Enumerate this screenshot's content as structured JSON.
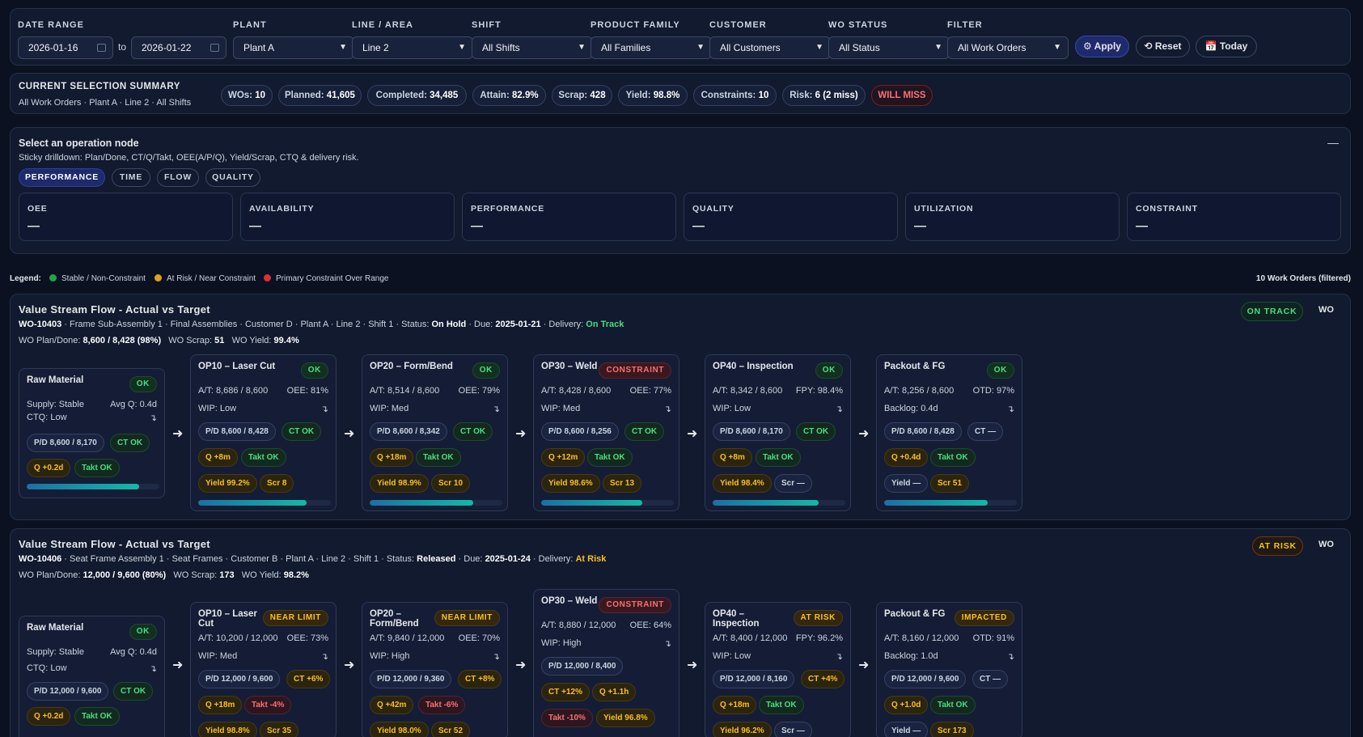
{
  "filters": {
    "date_range": {
      "label": "DATE RANGE",
      "from": "2026-01-16",
      "to_label": "to",
      "to": "2026-01-22"
    },
    "plant": {
      "label": "PLANT",
      "value": "Plant A"
    },
    "line": {
      "label": "LINE / AREA",
      "value": "Line 2"
    },
    "shift": {
      "label": "SHIFT",
      "value": "All Shifts"
    },
    "family": {
      "label": "PRODUCT FAMILY",
      "value": "All Families"
    },
    "customer": {
      "label": "CUSTOMER",
      "value": "All Customers"
    },
    "status": {
      "label": "WO STATUS",
      "value": "All Status"
    },
    "filter": {
      "label": "FILTER",
      "value": "All Work Orders"
    },
    "apply": "⚙ Apply",
    "reset": "⟲ Reset",
    "today": "📅 Today"
  },
  "summary": {
    "title": "CURRENT SELECTION SUMMARY",
    "subtitle": "All Work Orders · Plant A · Line 2 · All Shifts",
    "chips": [
      {
        "k": "WOs:",
        "v": "10"
      },
      {
        "k": "Planned:",
        "v": "41,605"
      },
      {
        "k": "Completed:",
        "v": "34,485"
      },
      {
        "k": "Attain:",
        "v": "82.9%"
      },
      {
        "k": "Scrap:",
        "v": "428"
      },
      {
        "k": "Yield:",
        "v": "98.8%"
      },
      {
        "k": "Constraints:",
        "v": "10"
      },
      {
        "k": "Risk:",
        "v": "6 (2 miss)"
      }
    ],
    "status": "WILL MISS"
  },
  "opnode": {
    "title": "Select an operation node",
    "subtitle": "Sticky drilldown: Plan/Done, CT/Q/Takt, OEE(A/P/Q), Yield/Scrap, CTQ & delivery risk.",
    "collapse": "—",
    "tabs": [
      "PERFORMANCE",
      "TIME",
      "FLOW",
      "QUALITY"
    ],
    "kpis": [
      {
        "label": "OEE",
        "value": "—"
      },
      {
        "label": "AVAILABILITY",
        "value": "—"
      },
      {
        "label": "PERFORMANCE",
        "value": "—"
      },
      {
        "label": "QUALITY",
        "value": "—"
      },
      {
        "label": "UTILIZATION",
        "value": "—"
      },
      {
        "label": "CONSTRAINT",
        "value": "—"
      }
    ]
  },
  "legend": {
    "label": "Legend:",
    "items": [
      "Stable / Non-Constraint",
      "At Risk / Near Constraint",
      "Primary Constraint Over Range"
    ],
    "colors": [
      "#22a34a",
      "#e0a020",
      "#dc3030"
    ],
    "count": "10 Work Orders (filtered)"
  },
  "streams": [
    {
      "title": "Value Stream Flow - Actual vs Target",
      "wo": "WO-10403",
      "desc": "· Frame Sub-Assembly 1 · Final Assemblies · Customer D · Plant A · Line 2 · Shift 1 · Status:",
      "status": "On Hold",
      "due_label": "· Due:",
      "due": "2025-01-21",
      "delivery_label": "· Delivery:",
      "delivery": "On Track",
      "plan_label": "WO Plan/Done:",
      "plan": "8,600 / 8,428 (98%)",
      "scrap_label": "WO Scrap:",
      "scrap": "51",
      "yield_label": "WO Yield:",
      "yield": "99.4%",
      "badge": "ON TRACK",
      "wo_tag": "WO",
      "nodes": [
        {
          "title": "Raw Material",
          "badge": "OK",
          "r1l": "Supply: Stable",
          "r1r": "Avg Q: 0.4d",
          "r2l": "CTQ: Low",
          "r2r": "↴",
          "p1": "P/D 8,600 / 8,170",
          "p2": "CT OK",
          "p3": "Q +0.2d",
          "p4": "Takt OK",
          "progress": 0.85
        },
        {
          "title": "OP10 – Laser Cut",
          "badge": "OK",
          "r1l": "A/T: 8,686 / 8,600",
          "r1r": "OEE: 81%",
          "r2l": "WIP: Low",
          "r2r": "↴",
          "p1": "P/D 8,600 / 8,428",
          "p2": "CT OK",
          "p3": "Q +8m",
          "p4": "Takt OK",
          "p5": "Yield 99.2%",
          "p6": "Scr 8",
          "progress": 0.82
        },
        {
          "title": "OP20 – Form/Bend",
          "badge": "OK",
          "r1l": "A/T: 8,514 / 8,600",
          "r1r": "OEE: 79%",
          "r2l": "WIP: Med",
          "r2r": "↴",
          "p1": "P/D 8,600 / 8,342",
          "p2": "CT OK",
          "p3": "Q +18m",
          "p4": "Takt OK",
          "p5": "Yield 98.9%",
          "p6": "Scr 10",
          "progress": 0.78
        },
        {
          "title": "OP30 – Weld",
          "badge": "CONSTRAINT",
          "r1l": "A/T: 8,428 / 8,600",
          "r1r": "OEE: 77%",
          "r2l": "WIP: Med",
          "r2r": "↴",
          "p1": "P/D 8,600 / 8,256",
          "p2": "CT OK",
          "p3": "Q +12m",
          "p4": "Takt OK",
          "p5": "Yield 98.6%",
          "p6": "Scr 13",
          "progress": 0.76
        },
        {
          "title": "OP40 – Inspection",
          "badge": "OK",
          "r1l": "A/T: 8,342 / 8,600",
          "r1r": "FPY: 98.4%",
          "r2l": "WIP: Low",
          "r2r": "↴",
          "p1": "P/D 8,600 / 8,170",
          "p2": "CT OK",
          "p3": "Q +8m",
          "p4": "Takt OK",
          "p5": "Yield 98.4%",
          "p6": "Scr —",
          "progress": 0.8
        },
        {
          "title": "Packout & FG",
          "badge": "OK",
          "r1l": "A/T: 8,256 / 8,600",
          "r1r": "OTD: 97%",
          "r2l": "Backlog: 0.4d",
          "r2r": "↴",
          "p1": "P/D 8,600 / 8,428",
          "p2": "CT —",
          "p3": "Q +0.4d",
          "p4": "Takt OK",
          "p5": "Yield —",
          "p6": "Scr 51",
          "progress": 0.78
        }
      ]
    },
    {
      "title": "Value Stream Flow - Actual vs Target",
      "wo": "WO-10406",
      "desc": "· Seat Frame Assembly 1 · Seat Frames · Customer B · Plant A · Line 2 · Shift 1 · Status:",
      "status": "Released",
      "due_label": "· Due:",
      "due": "2025-01-24",
      "delivery_label": "· Delivery:",
      "delivery": "At Risk",
      "plan_label": "WO Plan/Done:",
      "plan": "12,000 / 9,600 (80%)",
      "scrap_label": "WO Scrap:",
      "scrap": "173",
      "yield_label": "WO Yield:",
      "yield": "98.2%",
      "badge": "AT RISK",
      "wo_tag": "WO",
      "nodes": [
        {
          "title": "Raw Material",
          "badge": "OK",
          "r1l": "Supply: Stable",
          "r1r": "Avg Q: 0.4d",
          "r2l": "CTQ: Low",
          "r2r": "↴",
          "p1": "P/D 12,000 / 9,600",
          "p2": "CT OK",
          "p3": "Q +0.2d",
          "p4": "Takt OK"
        },
        {
          "title": "OP10 – Laser Cut",
          "badge": "NEAR LIMIT",
          "r1l": "A/T: 10,200 / 12,000",
          "r1r": "OEE: 73%",
          "r2l": "WIP: Med",
          "r2r": "↴",
          "p1": "P/D 12,000 / 9,600",
          "p2": "CT +6%",
          "p3": "Q +18m",
          "p4": "Takt -4%",
          "p5": "Yield 98.8%",
          "p6": "Scr 35"
        },
        {
          "title": "OP20 – Form/Bend",
          "badge": "NEAR LIMIT",
          "r1l": "A/T: 9,840 / 12,000",
          "r1r": "OEE: 70%",
          "r2l": "WIP: High",
          "r2r": "↴",
          "p1": "P/D 12,000 / 9,360",
          "p2": "CT +8%",
          "p3": "Q +42m",
          "p4": "Takt -6%",
          "p5": "Yield 98.0%",
          "p6": "Scr 52"
        },
        {
          "title": "OP30 – Weld",
          "badge": "CONSTRAINT",
          "r1l": "A/T: 8,880 / 12,000",
          "r1r": "OEE: 64%",
          "r2l": "WIP: High",
          "r2r": "↴",
          "p1": "P/D 12,000 / 8,400",
          "p2": "CT +12%",
          "p3": "Q +1.1h",
          "p4": "Takt -10%",
          "p5": "Yield 96.8%"
        },
        {
          "title": "OP40 – Inspection",
          "badge": "AT RISK",
          "r1l": "A/T: 8,400 / 12,000",
          "r1r": "FPY: 96.2%",
          "r2l": "WIP: Low",
          "r2r": "↴",
          "p1": "P/D 12,000 / 8,160",
          "p2": "CT +4%",
          "p3": "Q +18m",
          "p4": "Takt OK",
          "p5": "Yield 96.2%",
          "p6": "Scr —"
        },
        {
          "title": "Packout & FG",
          "badge": "IMPACTED",
          "r1l": "A/T: 8,160 / 12,000",
          "r1r": "OTD: 91%",
          "r2l": "Backlog: 1.0d",
          "r2r": "↴",
          "p1": "P/D 12,000 / 9,600",
          "p2": "CT —",
          "p3": "Q +1.0d",
          "p4": "Takt OK",
          "p5": "Yield —",
          "p6": "Scr 173"
        }
      ]
    }
  ]
}
